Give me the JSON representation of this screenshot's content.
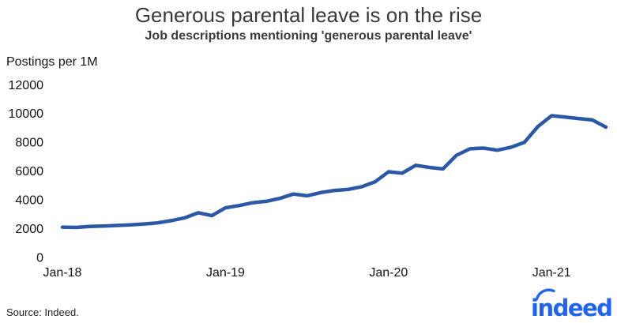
{
  "chart_data": {
    "type": "line",
    "title": "Generous parental leave is on the rise",
    "subtitle": "Job descriptions mentioning 'generous parental leave'",
    "ylabel": "Postings per 1M",
    "xlabel": "",
    "grid": false,
    "legend_position": "none",
    "line_color": "#2b57a7",
    "ylim": [
      0,
      12000
    ],
    "y_ticks": [
      0,
      2000,
      4000,
      6000,
      8000,
      10000,
      12000
    ],
    "x_tick_labels": [
      "Jan-18",
      "Jan-19",
      "Jan-20",
      "Jan-21"
    ],
    "x_tick_month_indices": [
      0,
      12,
      24,
      36
    ],
    "x": [
      "Jan-18",
      "Feb-18",
      "Mar-18",
      "Apr-18",
      "May-18",
      "Jun-18",
      "Jul-18",
      "Aug-18",
      "Sep-18",
      "Oct-18",
      "Nov-18",
      "Dec-18",
      "Jan-19",
      "Feb-19",
      "Mar-19",
      "Apr-19",
      "May-19",
      "Jun-19",
      "Jul-19",
      "Aug-19",
      "Sep-19",
      "Oct-19",
      "Nov-19",
      "Dec-19",
      "Jan-20",
      "Feb-20",
      "Mar-20",
      "Apr-20",
      "May-20",
      "Jun-20",
      "Jul-20",
      "Aug-20",
      "Sep-20",
      "Oct-20",
      "Nov-20",
      "Dec-20",
      "Jan-21",
      "Feb-21",
      "Mar-21",
      "Apr-21",
      "May-21"
    ],
    "values": [
      2100,
      2080,
      2150,
      2180,
      2220,
      2260,
      2320,
      2400,
      2550,
      2750,
      3100,
      2900,
      3450,
      3600,
      3800,
      3900,
      4100,
      4400,
      4280,
      4500,
      4650,
      4720,
      4900,
      5250,
      5950,
      5850,
      6400,
      6250,
      6150,
      7100,
      7550,
      7600,
      7450,
      7650,
      8000,
      9100,
      9850,
      9750,
      9650,
      9550,
      9050
    ]
  },
  "footer": {
    "source": "Source: Indeed.",
    "logo_text": "indeed",
    "logo_color": "#2164f3"
  }
}
